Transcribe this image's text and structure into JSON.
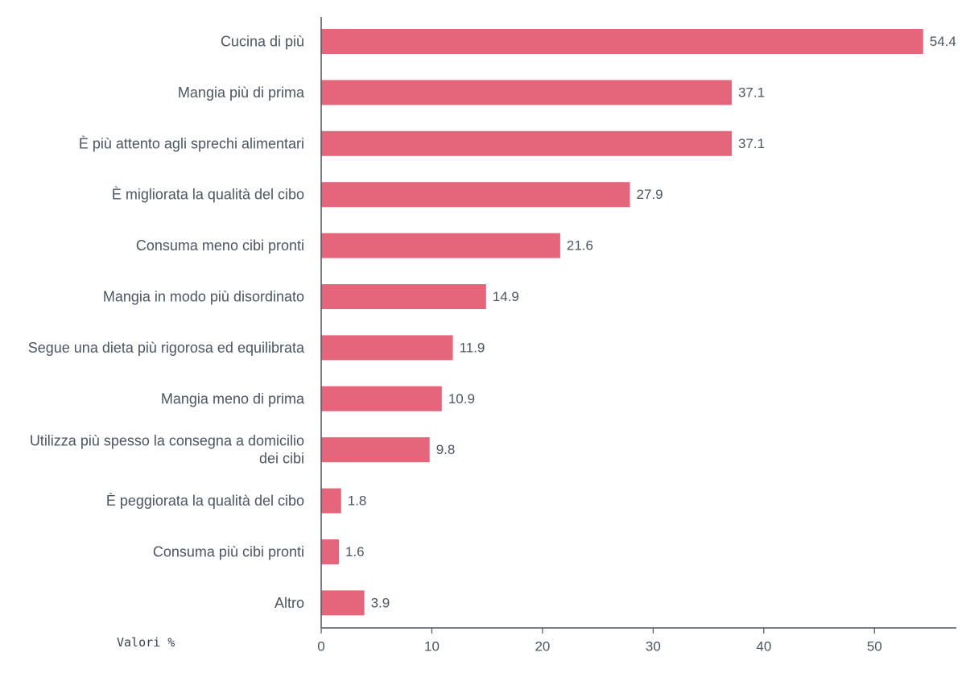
{
  "chart_data": {
    "type": "bar",
    "orientation": "horizontal",
    "categories": [
      "Cucina di più",
      "Mangia più di prima",
      "È più attento agli sprechi alimentari",
      "È migliorata la qualità del cibo",
      "Consuma meno cibi pronti",
      "Mangia in modo più disordinato",
      "Segue una dieta più rigorosa ed equilibrata",
      "Mangia meno di prima",
      "Utilizza più spesso la consegna a domicilio dei cibi",
      "È peggiorata la qualità del cibo",
      "Consuma più cibi pronti",
      "Altro"
    ],
    "category_lines": [
      [
        "Cucina di più"
      ],
      [
        "Mangia più di prima"
      ],
      [
        "È più attento agli sprechi alimentari"
      ],
      [
        "È migliorata la qualità del cibo"
      ],
      [
        "Consuma meno cibi pronti"
      ],
      [
        "Mangia in modo più disordinato"
      ],
      [
        "Segue una dieta più rigorosa ed equilibrata"
      ],
      [
        "Mangia meno di prima"
      ],
      [
        "Utilizza più spesso la consegna a domicilio",
        "dei cibi"
      ],
      [
        "È peggiorata la qualità del cibo"
      ],
      [
        "Consuma più cibi pronti"
      ],
      [
        "Altro"
      ]
    ],
    "values": [
      54.4,
      37.1,
      37.1,
      27.9,
      21.6,
      14.9,
      11.9,
      10.9,
      9.8,
      1.8,
      1.6,
      3.9
    ],
    "value_labels": [
      "54.4",
      "37.1",
      "37.1",
      "27.9",
      "21.6",
      "14.9",
      "11.9",
      "10.9",
      "9.8",
      "1.8",
      "1.6",
      "3.9"
    ],
    "xticks": [
      0,
      10,
      20,
      30,
      40,
      50
    ],
    "xlim": [
      0,
      57.4
    ],
    "unit_label": "Valori %",
    "bar_color": "#e5667b",
    "axis_color": "#4b5563",
    "grid": false,
    "legend": "none"
  }
}
